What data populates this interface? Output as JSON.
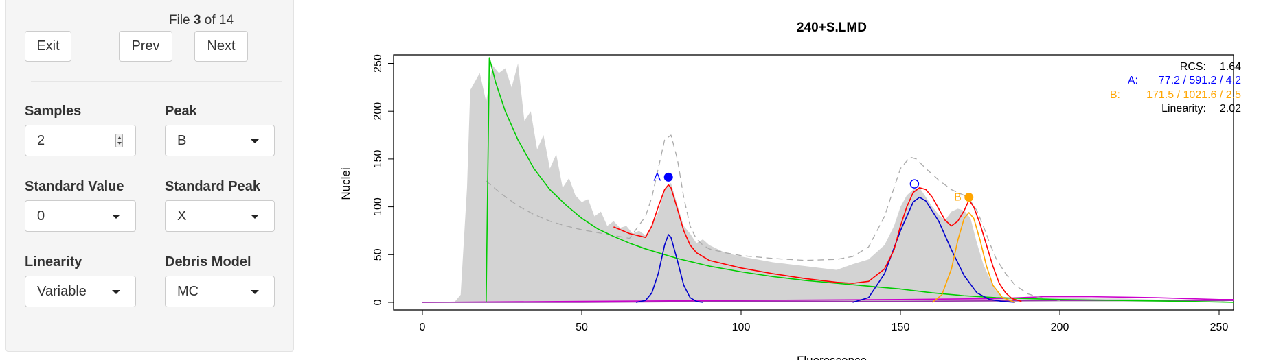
{
  "panel": {
    "exit_label": "Exit",
    "prev_label": "Prev",
    "next_label": "Next",
    "file_prefix": "File",
    "file_current": "3",
    "file_of": "of",
    "file_total": "14",
    "samples_label": "Samples",
    "samples_value": "2",
    "peak_label": "Peak",
    "peak_value": "B",
    "standard_value_label": "Standard Value",
    "standard_value_value": "0",
    "standard_peak_label": "Standard Peak",
    "standard_peak_value": "X",
    "linearity_label": "Linearity",
    "linearity_value": "Variable",
    "debris_label": "Debris Model",
    "debris_value": "MC"
  },
  "chart_data": {
    "type": "line",
    "title": "240+S.LMD",
    "xlabel": "Fluorescence",
    "ylabel": "Nuclei",
    "xlim": [
      -10,
      260
    ],
    "ylim": [
      -10,
      260
    ],
    "xticks": [
      "0",
      "50",
      "100",
      "150",
      "200",
      "250"
    ],
    "yticks": [
      "0",
      "50",
      "100",
      "150",
      "200",
      "250"
    ],
    "grid": false,
    "legend": "none",
    "stats": {
      "rcs_label": "RCS:",
      "rcs_value": "1.64",
      "a_label": "A:",
      "a_value": "77.2 / 591.2 / 4.2",
      "b_label": "B:",
      "b_value": "171.5 / 1021.6 / 2.5",
      "linearity_label": "Linearity:",
      "linearity_value": "2.02",
      "position": "top-right"
    },
    "peak_markers": [
      {
        "label": "A",
        "x": 77.2,
        "y": 131,
        "style": "filled",
        "color": "#0000ff"
      },
      {
        "label": "",
        "x": 154.4,
        "y": 124,
        "style": "open",
        "color": "#0000ff"
      },
      {
        "label": "B",
        "x": 171.5,
        "y": 110,
        "style": "filled",
        "color": "#ffa500"
      }
    ],
    "series": [
      {
        "key": "histogram",
        "color": "#d3d3d3",
        "x": [
          10,
          12,
          14,
          15,
          16,
          18,
          20,
          22,
          24,
          26,
          28,
          30,
          32,
          34,
          36,
          38,
          40,
          42,
          44,
          46,
          48,
          50,
          52,
          54,
          56,
          58,
          60,
          62,
          64,
          66,
          68,
          70,
          72,
          74,
          76,
          78,
          80,
          82,
          84,
          86,
          88,
          90,
          95,
          100,
          105,
          110,
          115,
          120,
          125,
          130,
          135,
          140,
          145,
          148,
          150,
          152,
          154,
          156,
          158,
          160,
          162,
          164,
          166,
          168,
          170,
          172,
          174,
          176,
          178,
          180,
          182,
          185,
          190,
          195,
          200,
          210,
          220,
          230,
          240,
          250,
          255
        ],
        "y": [
          0,
          8,
          120,
          222,
          228,
          240,
          210,
          248,
          240,
          245,
          225,
          250,
          190,
          200,
          160,
          175,
          140,
          155,
          120,
          130,
          112,
          105,
          108,
          90,
          95,
          80,
          85,
          78,
          80,
          72,
          75,
          70,
          80,
          95,
          118,
          125,
          102,
          80,
          72,
          62,
          66,
          60,
          52,
          48,
          45,
          42,
          40,
          38,
          36,
          34,
          40,
          45,
          60,
          80,
          100,
          112,
          118,
          120,
          110,
          100,
          92,
          86,
          95,
          98,
          96,
          88,
          62,
          40,
          25,
          12,
          6,
          5,
          5,
          5,
          5,
          4,
          4,
          3,
          3,
          2,
          0
        ]
      },
      {
        "key": "total_fit_x2",
        "color": "#aaaaaa",
        "x": [
          20,
          25,
          30,
          35,
          40,
          45,
          50,
          55,
          60,
          65,
          70,
          72,
          74,
          76,
          78,
          80,
          82,
          84,
          86,
          88,
          90,
          95,
          100,
          110,
          120,
          130,
          135,
          140,
          145,
          150,
          153,
          155,
          158,
          162,
          166,
          170,
          172,
          174,
          176,
          178,
          180,
          183,
          186,
          190,
          195,
          200
        ],
        "y": [
          127,
          113,
          101,
          92,
          85,
          80,
          76,
          73,
          70,
          67,
          90,
          110,
          140,
          170,
          175,
          150,
          110,
          80,
          66,
          60,
          56,
          52,
          49,
          46,
          44,
          45,
          48,
          58,
          90,
          140,
          152,
          150,
          140,
          128,
          118,
          112,
          106,
          96,
          80,
          62,
          46,
          30,
          18,
          9,
          4,
          2
        ]
      },
      {
        "key": "debris",
        "color": "#00cc00",
        "x": [
          20,
          21,
          23,
          26,
          30,
          35,
          40,
          45,
          50,
          55,
          60,
          65,
          70,
          75,
          80,
          85,
          90,
          100,
          110,
          120,
          130,
          140,
          150,
          160,
          170,
          180,
          200,
          220,
          240,
          255
        ],
        "y": [
          0,
          256,
          230,
          200,
          170,
          140,
          118,
          102,
          88,
          77,
          69,
          62,
          56,
          51,
          46,
          42,
          38,
          32,
          27,
          23,
          20,
          17,
          14,
          10,
          7,
          5,
          3,
          2,
          1,
          0
        ]
      },
      {
        "key": "model_sum",
        "color": "#ff0000",
        "x": [
          60,
          65,
          70,
          72,
          74,
          76,
          77.2,
          78,
          80,
          82,
          84,
          86,
          88,
          90,
          95,
          100,
          110,
          120,
          130,
          135,
          140,
          145,
          148,
          150,
          152,
          154,
          156,
          158,
          160,
          162,
          164,
          166,
          168,
          170,
          171.5,
          173,
          175,
          177,
          179,
          181,
          183,
          185,
          188
        ],
        "y": [
          79,
          72,
          68,
          80,
          100,
          118,
          123,
          120,
          98,
          75,
          60,
          52,
          48,
          44,
          40,
          36,
          30,
          25,
          21,
          20,
          22,
          35,
          55,
          80,
          100,
          115,
          120,
          118,
          110,
          98,
          86,
          80,
          85,
          96,
          107,
          100,
          82,
          60,
          38,
          20,
          10,
          4,
          1
        ]
      },
      {
        "key": "peak_a",
        "color": "#0000cc",
        "x": [
          67,
          70,
          72,
          74,
          76,
          77.2,
          78,
          80,
          82,
          84,
          86,
          88
        ],
        "y": [
          0,
          2,
          10,
          30,
          60,
          71,
          68,
          44,
          18,
          5,
          1,
          0
        ]
      },
      {
        "key": "peak_a_g2",
        "color": "#0000cc",
        "x": [
          135,
          140,
          145,
          150,
          154,
          156,
          158,
          162,
          166,
          170,
          174,
          178,
          182,
          186
        ],
        "y": [
          0,
          5,
          30,
          75,
          105,
          110,
          106,
          85,
          55,
          28,
          10,
          3,
          1,
          0
        ]
      },
      {
        "key": "peak_b",
        "color": "#ffa500",
        "x": [
          160,
          163,
          166,
          168,
          170,
          171.5,
          173,
          175,
          177,
          179,
          182,
          186
        ],
        "y": [
          0,
          8,
          35,
          65,
          88,
          94,
          88,
          65,
          38,
          18,
          5,
          0
        ]
      },
      {
        "key": "aggregates",
        "color": "#cc00cc",
        "x": [
          0,
          50,
          100,
          150,
          180,
          195,
          210,
          230,
          250,
          255
        ],
        "y": [
          0,
          1,
          2,
          3,
          4,
          6,
          6,
          5,
          3,
          3
        ]
      },
      {
        "key": "baseline",
        "color": "#9933aa",
        "x": [
          0,
          50,
          100,
          150,
          200,
          255
        ],
        "y": [
          0,
          0,
          1,
          1,
          2,
          2
        ]
      }
    ]
  }
}
